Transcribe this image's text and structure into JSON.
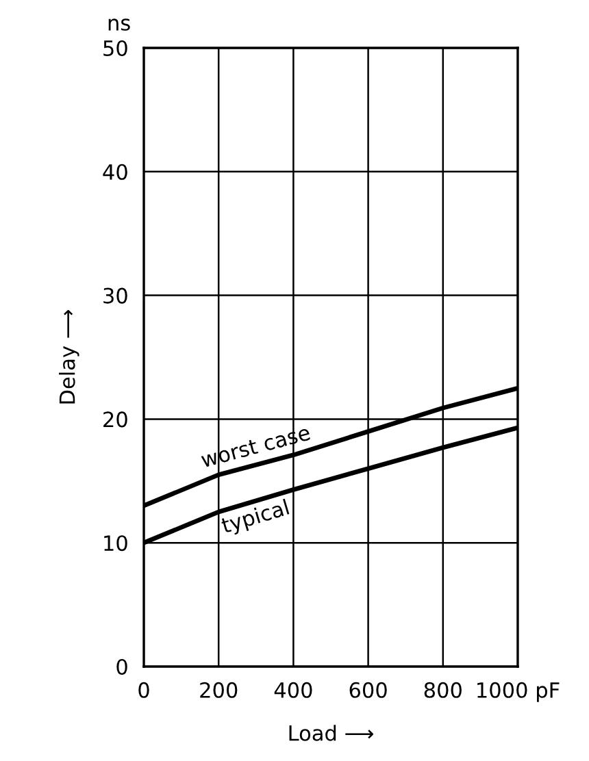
{
  "chart_data": {
    "type": "line",
    "xlabel": "Load ⟶",
    "ylabel": "Delay ⟶",
    "annotations": [
      "ns"
    ],
    "x": [
      0,
      200,
      400,
      600,
      800,
      1000
    ],
    "series": [
      {
        "name": "worst case",
        "color": "#000000",
        "values": [
          13,
          15.5,
          17.1,
          19,
          20.9,
          22.5
        ]
      },
      {
        "name": "typical",
        "color": "#000000",
        "values": [
          10,
          12.5,
          14.3,
          16,
          17.7,
          19.3
        ]
      }
    ],
    "xlim": [
      0,
      1000
    ],
    "xticks": [
      0,
      200,
      400,
      600,
      800,
      {
        "value": 1000,
        "label": "1000 pF"
      }
    ],
    "ylim": [
      0,
      50
    ],
    "yticks": [
      0,
      10,
      20,
      30,
      40,
      50
    ],
    "grid": true,
    "legend": false,
    "marker": "none",
    "line_style": "solid"
  }
}
